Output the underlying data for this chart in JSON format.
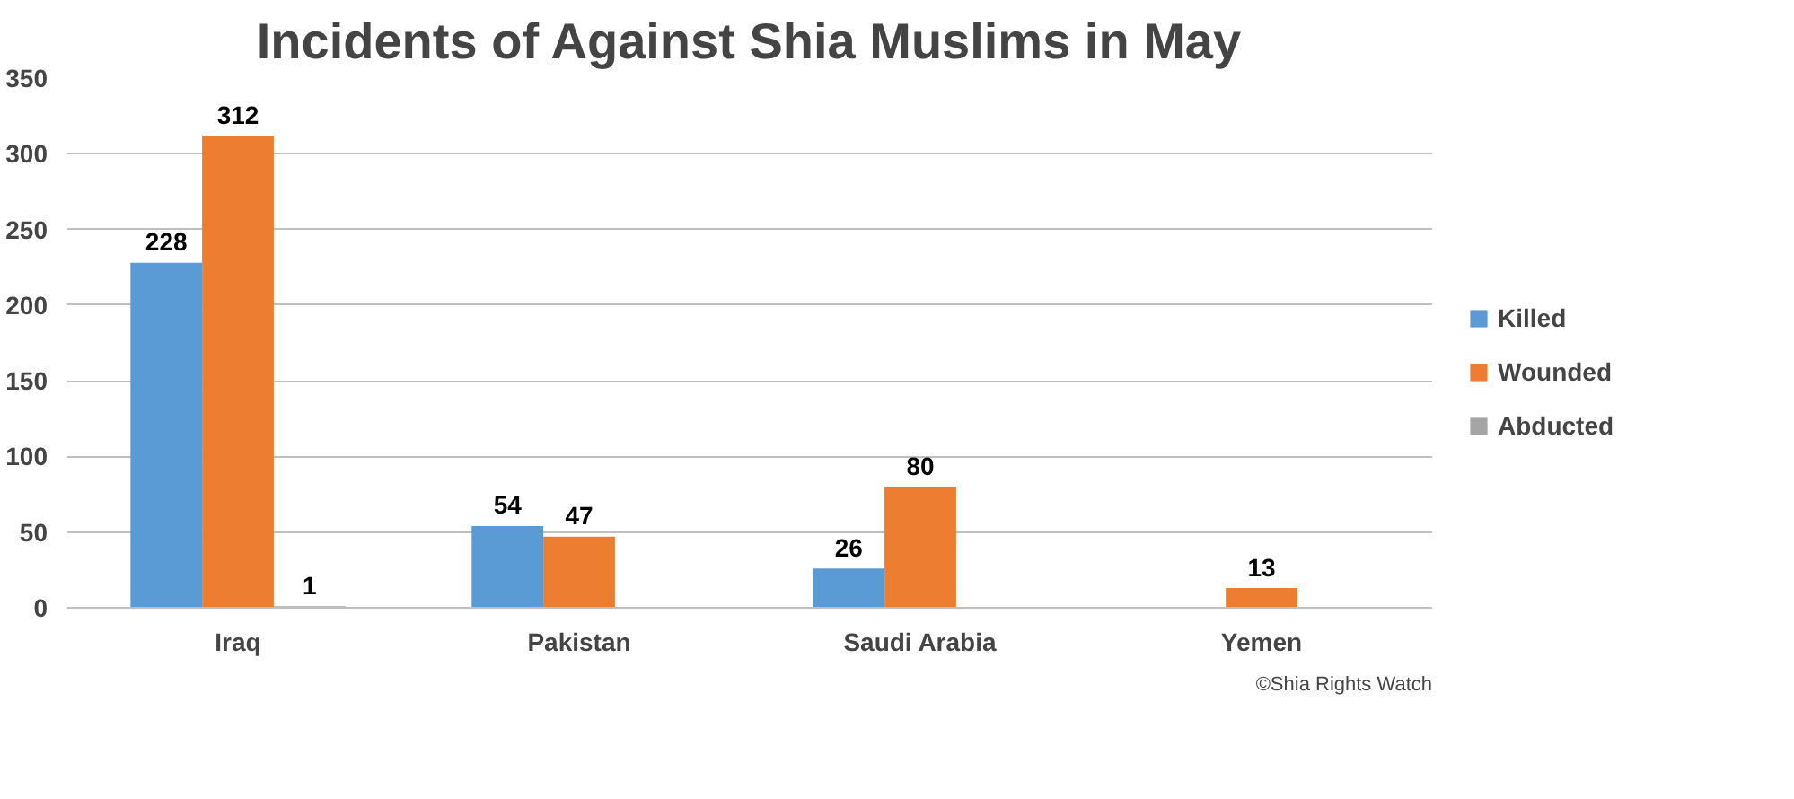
{
  "chart_data": {
    "type": "bar",
    "title": "Incidents of Against Shia Muslims in May",
    "categories": [
      "Iraq",
      "Pakistan",
      "Saudi Arabia",
      "Yemen"
    ],
    "series": [
      {
        "name": "Killed",
        "color": "#5b9bd5",
        "values": [
          228,
          54,
          26,
          null
        ],
        "value_labels": [
          "228",
          "54",
          "26",
          null
        ]
      },
      {
        "name": "Wounded",
        "color": "#ed7d31",
        "values": [
          312,
          47,
          80,
          13
        ],
        "value_labels": [
          "312",
          "47",
          "80",
          "13"
        ]
      },
      {
        "name": "Abducted",
        "color": "#a5a5a5",
        "values": [
          1,
          null,
          null,
          null
        ],
        "value_labels": [
          "1",
          null,
          null,
          null
        ]
      }
    ],
    "ylim": [
      0,
      350
    ],
    "yticks": [
      0,
      50,
      100,
      150,
      200,
      250,
      300,
      350
    ],
    "grid": "y",
    "legend": "right",
    "annotations": [
      "©Shia Rights Watch"
    ]
  }
}
